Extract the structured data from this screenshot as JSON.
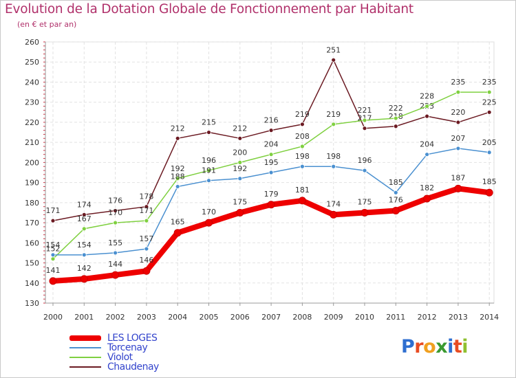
{
  "chart_data": {
    "type": "line",
    "title": "Evolution de la Dotation Globale de Fonctionnement par Habitant",
    "subtitle": "(en € et par an)",
    "xlabel": "",
    "ylabel": "",
    "x": [
      "2000",
      "2001",
      "2002",
      "2003",
      "2004",
      "2005",
      "2006",
      "2007",
      "2008",
      "2009",
      "2010",
      "2011",
      "2012",
      "2013",
      "2014"
    ],
    "ylim": [
      130,
      260
    ],
    "yticks": [
      130,
      140,
      150,
      160,
      170,
      180,
      190,
      200,
      210,
      220,
      230,
      240,
      250,
      260
    ],
    "grid": true,
    "series": [
      {
        "name": "LES LOGES",
        "color": "#ee0000",
        "values": [
          141,
          142,
          144,
          146,
          165,
          170,
          175,
          179,
          181,
          174,
          175,
          176,
          182,
          187,
          185
        ]
      },
      {
        "name": "Torcenay",
        "color": "#4a90d0",
        "values": [
          154,
          154,
          155,
          157,
          188,
          191,
          192,
          195,
          198,
          198,
          196,
          185,
          204,
          207,
          205
        ]
      },
      {
        "name": "Violot",
        "color": "#7fd040",
        "values": [
          152,
          167,
          170,
          171,
          192,
          196,
          200,
          204,
          208,
          219,
          221,
          222,
          228,
          235,
          235
        ]
      },
      {
        "name": "Chaudenay",
        "color": "#6b1a22",
        "values": [
          171,
          174,
          176,
          178,
          212,
          215,
          212,
          216,
          219,
          251,
          217,
          218,
          223,
          220,
          225
        ]
      }
    ]
  },
  "legend": [
    {
      "name": "LES LOGES",
      "color": "#ee0000",
      "thickness": 8
    },
    {
      "name": "Torcenay",
      "color": "#4a90d0",
      "thickness": 2
    },
    {
      "name": "Violot",
      "color": "#7fd040",
      "thickness": 2
    },
    {
      "name": "Chaudenay",
      "color": "#6b1a22",
      "thickness": 2
    }
  ],
  "logo": {
    "text": "Proxiti",
    "letters": [
      {
        "ch": "P",
        "color": "#2f6fd0"
      },
      {
        "ch": "r",
        "color": "#e84c22"
      },
      {
        "ch": "o",
        "color": "#f0a020"
      },
      {
        "ch": "x",
        "color": "#3a9a30"
      },
      {
        "ch": "i",
        "color": "#2f6fd0"
      },
      {
        "ch": "t",
        "color": "#e84c22"
      },
      {
        "ch": "i",
        "color": "#8fc030"
      }
    ]
  }
}
